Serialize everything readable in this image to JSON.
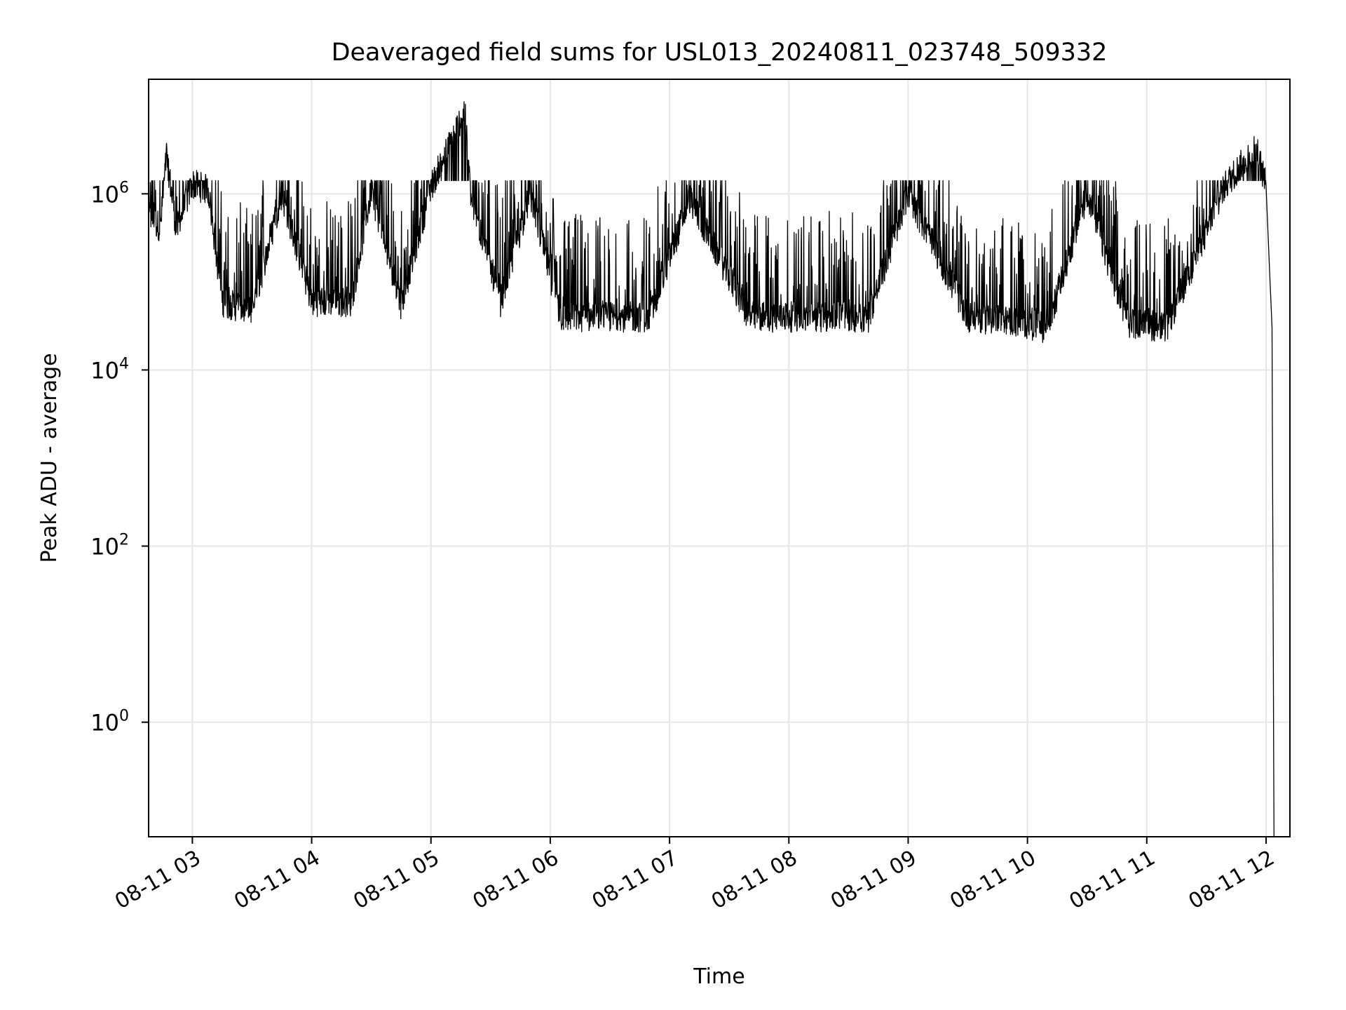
{
  "chart_data": {
    "type": "line",
    "title": "Deaveraged field sums for USL013_20240811_023748_509332",
    "xlabel": "Time",
    "ylabel": "Peak ADU - average",
    "x_axis": {
      "type": "date",
      "range": [
        "2024-08-11 02:38",
        "2024-08-11 12:12"
      ],
      "ticks": [
        "08-11 03",
        "08-11 04",
        "08-11 05",
        "08-11 06",
        "08-11 07",
        "08-11 08",
        "08-11 09",
        "08-11 10",
        "08-11 11",
        "08-11 12"
      ]
    },
    "y_axis": {
      "scale": "log",
      "range": [
        0.05,
        20000000
      ],
      "ticks": [
        {
          "value": 1,
          "base": "10",
          "exp": "0"
        },
        {
          "value": 100,
          "base": "10",
          "exp": "2"
        },
        {
          "value": 10000,
          "base": "10",
          "exp": "4"
        },
        {
          "value": 1000000,
          "base": "10",
          "exp": "6"
        }
      ]
    },
    "grid": true,
    "line_color": "#000000",
    "series": [
      {
        "points": [
          [
            "2024-08-11 02:38",
            550000
          ],
          [
            "2024-08-11 02:44",
            420000
          ],
          [
            "2024-08-11 02:47",
            2800000
          ],
          [
            "2024-08-11 02:52",
            380000
          ],
          [
            "2024-08-11 03:00",
            1300000
          ],
          [
            "2024-08-11 03:08",
            1100000
          ],
          [
            "2024-08-11 03:15",
            60000
          ],
          [
            "2024-08-11 03:30",
            45000
          ],
          [
            "2024-08-11 03:45",
            1000000
          ],
          [
            "2024-08-11 04:00",
            60000
          ],
          [
            "2024-08-11 04:20",
            60000
          ],
          [
            "2024-08-11 04:30",
            1100000
          ],
          [
            "2024-08-11 04:45",
            55000
          ],
          [
            "2024-08-11 05:00",
            1200000
          ],
          [
            "2024-08-11 05:17",
            9000000
          ],
          [
            "2024-08-11 05:20",
            900000
          ],
          [
            "2024-08-11 05:35",
            60000
          ],
          [
            "2024-08-11 05:50",
            1000000
          ],
          [
            "2024-08-11 06:05",
            40000
          ],
          [
            "2024-08-11 06:30",
            40000
          ],
          [
            "2024-08-11 06:50",
            40000
          ],
          [
            "2024-08-11 07:10",
            900000
          ],
          [
            "2024-08-11 07:40",
            40000
          ],
          [
            "2024-08-11 08:00",
            40000
          ],
          [
            "2024-08-11 08:40",
            40000
          ],
          [
            "2024-08-11 09:00",
            1000000
          ],
          [
            "2024-08-11 09:30",
            40000
          ],
          [
            "2024-08-11 09:55",
            35000
          ],
          [
            "2024-08-11 10:10",
            30000
          ],
          [
            "2024-08-11 10:30",
            1000000
          ],
          [
            "2024-08-11 10:50",
            35000
          ],
          [
            "2024-08-11 11:10",
            30000
          ],
          [
            "2024-08-11 11:40",
            1300000
          ],
          [
            "2024-08-11 11:55",
            3500000
          ],
          [
            "2024-08-11 12:00",
            1200000
          ],
          [
            "2024-08-11 12:03",
            30000
          ],
          [
            "2024-08-11 12:04",
            0.05
          ]
        ]
      }
    ]
  }
}
